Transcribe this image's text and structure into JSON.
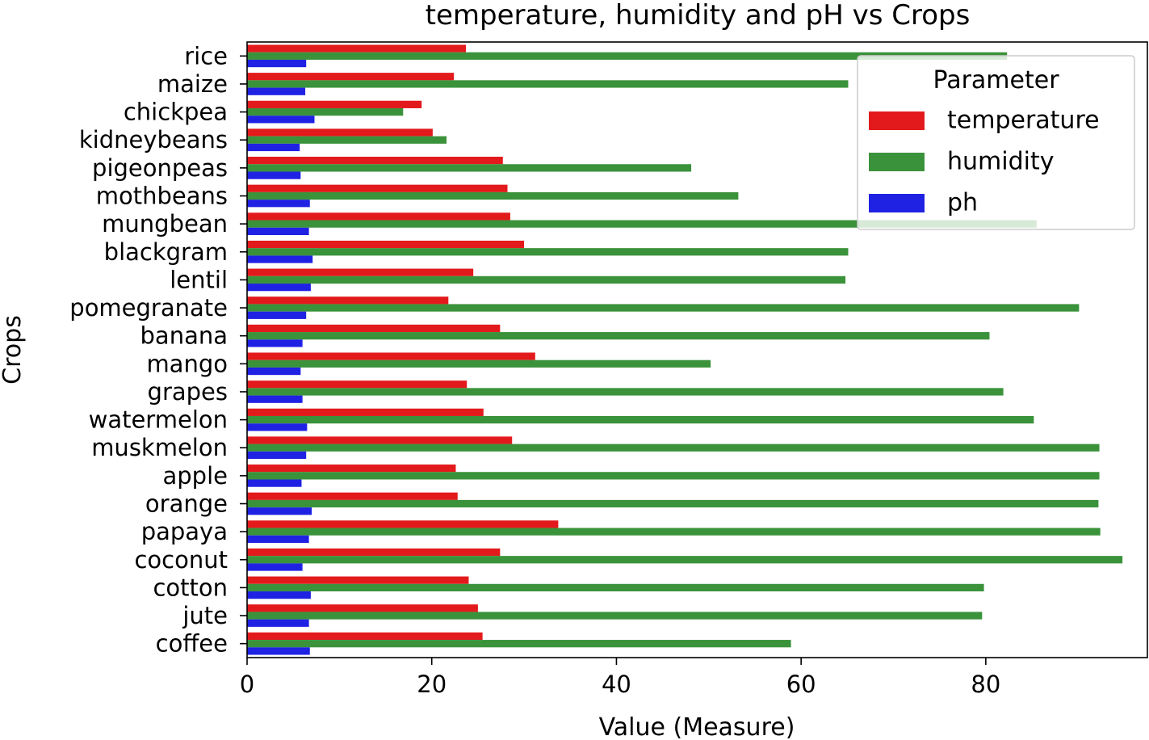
{
  "chart_data": {
    "type": "bar",
    "orientation": "horizontal",
    "title": "temperature, humidity and pH vs Crops",
    "xlabel": "Value (Measure)",
    "ylabel": "Crops",
    "xlim": [
      0,
      97.5
    ],
    "xticks": [
      0,
      20,
      40,
      60,
      80
    ],
    "grid": false,
    "legend": {
      "title": "Parameter",
      "placement": "top-right"
    },
    "categories": [
      "rice",
      "maize",
      "chickpea",
      "kidneybeans",
      "pigeonpeas",
      "mothbeans",
      "mungbean",
      "blackgram",
      "lentil",
      "pomegranate",
      "banana",
      "mango",
      "grapes",
      "watermelon",
      "muskmelon",
      "apple",
      "orange",
      "papaya",
      "coconut",
      "cotton",
      "jute",
      "coffee"
    ],
    "series": [
      {
        "name": "temperature",
        "color": "#e31a1c",
        "values": [
          23.7,
          22.4,
          18.9,
          20.1,
          27.7,
          28.2,
          28.5,
          30.0,
          24.5,
          21.8,
          27.4,
          31.2,
          23.8,
          25.6,
          28.7,
          22.6,
          22.8,
          33.7,
          27.4,
          24.0,
          25.0,
          25.5
        ]
      },
      {
        "name": "humidity",
        "color": "#3a923a",
        "values": [
          82.3,
          65.1,
          16.9,
          21.6,
          48.1,
          53.2,
          85.5,
          65.1,
          64.8,
          90.1,
          80.4,
          50.2,
          81.9,
          85.2,
          92.3,
          92.3,
          92.2,
          92.4,
          94.8,
          79.8,
          79.6,
          58.9
        ]
      },
      {
        "name": "ph",
        "color": "#1f22e3",
        "values": [
          6.4,
          6.3,
          7.3,
          5.7,
          5.8,
          6.8,
          6.7,
          7.1,
          6.9,
          6.4,
          6.0,
          5.8,
          6.0,
          6.5,
          6.4,
          5.9,
          7.0,
          6.7,
          6.0,
          6.9,
          6.7,
          6.8
        ]
      }
    ]
  }
}
